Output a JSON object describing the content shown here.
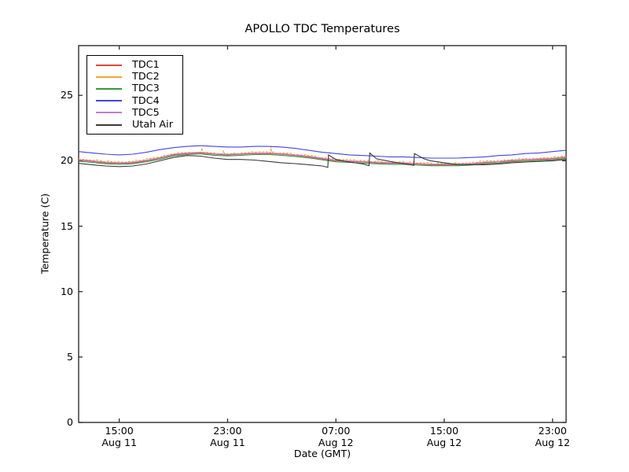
{
  "figure": {
    "background": "#ffffff",
    "axis_color": "#2e2e2e"
  },
  "chart_data": {
    "type": "line",
    "title": "APOLLO TDC Temperatures",
    "xlabel": "Date (GMT)",
    "ylabel": "Temperature (C)",
    "grid": false,
    "legend_position": "upper left",
    "ylim": [
      0,
      28.8
    ],
    "yticks": [
      0,
      5,
      10,
      15,
      20,
      25
    ],
    "xlim_hours": [
      0,
      36
    ],
    "x_unit": "hours from Aug 11 12:00 GMT",
    "xticks": [
      {
        "hour": 3,
        "time": "15:00",
        "date": "Aug 11"
      },
      {
        "hour": 11,
        "time": "23:00",
        "date": "Aug 11"
      },
      {
        "hour": 19,
        "time": "07:00",
        "date": "Aug 12"
      },
      {
        "hour": 27,
        "time": "15:00",
        "date": "Aug 12"
      },
      {
        "hour": 35,
        "time": "23:00",
        "date": "Aug 12"
      }
    ],
    "series": [
      {
        "name": "TDC1",
        "color": "#e2453c",
        "values": [
          20.05,
          19.95,
          19.85,
          19.8,
          19.85,
          20.0,
          20.2,
          20.45,
          20.55,
          20.6,
          20.5,
          20.45,
          20.5,
          20.55,
          20.55,
          20.5,
          20.4,
          20.3,
          20.15,
          20.0,
          19.95,
          19.9,
          19.85,
          19.8,
          19.8,
          19.75,
          19.7,
          19.7,
          19.7,
          19.75,
          19.85,
          19.9,
          20.0,
          20.05,
          20.1,
          20.15,
          20.25
        ]
      },
      {
        "name": "TDC2",
        "color": "#f5a33a",
        "noise": 0.055,
        "dash": "3,1.6",
        "spikes": [
          [
            9.1,
            0.3
          ],
          [
            10.7,
            0.22
          ],
          [
            14.2,
            0.45
          ]
        ],
        "values": [
          20.15,
          20.05,
          19.95,
          19.9,
          19.95,
          20.1,
          20.3,
          20.55,
          20.65,
          20.7,
          20.6,
          20.55,
          20.6,
          20.65,
          20.65,
          20.6,
          20.5,
          20.4,
          20.25,
          20.1,
          20.05,
          20.0,
          19.95,
          19.9,
          19.9,
          19.85,
          19.8,
          19.8,
          19.8,
          19.85,
          19.95,
          20.0,
          20.1,
          20.15,
          20.2,
          20.25,
          20.35
        ]
      },
      {
        "name": "TDC3",
        "color": "#37963f",
        "values": [
          19.97,
          19.87,
          19.77,
          19.72,
          19.77,
          19.92,
          20.12,
          20.37,
          20.47,
          20.52,
          20.42,
          20.37,
          20.42,
          20.47,
          20.47,
          20.42,
          20.32,
          20.22,
          20.07,
          19.92,
          19.87,
          19.82,
          19.77,
          19.72,
          19.72,
          19.67,
          19.62,
          19.62,
          19.62,
          19.67,
          19.77,
          19.82,
          19.92,
          19.97,
          20.02,
          20.07,
          20.17
        ]
      },
      {
        "name": "TDC4",
        "color": "#4343e8",
        "values": [
          20.7,
          20.6,
          20.5,
          20.45,
          20.5,
          20.65,
          20.85,
          21.0,
          21.1,
          21.15,
          21.1,
          21.05,
          21.05,
          21.1,
          21.1,
          21.05,
          20.95,
          20.8,
          20.65,
          20.55,
          20.45,
          20.4,
          20.35,
          20.3,
          20.3,
          20.25,
          20.2,
          20.2,
          20.2,
          20.25,
          20.3,
          20.4,
          20.45,
          20.55,
          20.6,
          20.7,
          20.8
        ]
      },
      {
        "name": "TDC5",
        "color": "#bd80cf",
        "values": [
          20.09,
          19.99,
          19.89,
          19.84,
          19.89,
          20.04,
          20.24,
          20.49,
          20.59,
          20.64,
          20.54,
          20.49,
          20.54,
          20.59,
          20.59,
          20.54,
          20.44,
          20.34,
          20.19,
          20.04,
          19.99,
          19.94,
          19.89,
          19.84,
          19.84,
          19.79,
          19.74,
          19.74,
          19.74,
          19.79,
          19.89,
          19.94,
          20.04,
          20.09,
          20.14,
          20.19,
          20.29
        ]
      },
      {
        "name": "Utah Air",
        "color": "#3a3a3a",
        "points": [
          [
            0,
            19.8
          ],
          [
            1,
            19.7
          ],
          [
            2,
            19.6
          ],
          [
            3,
            19.55
          ],
          [
            4,
            19.6
          ],
          [
            5,
            19.75
          ],
          [
            6,
            20.0
          ],
          [
            7,
            20.25
          ],
          [
            8,
            20.4
          ],
          [
            9,
            20.35
          ],
          [
            10,
            20.2
          ],
          [
            11,
            20.1
          ],
          [
            12,
            20.1
          ],
          [
            13,
            20.05
          ],
          [
            14,
            19.95
          ],
          [
            15,
            19.85
          ],
          [
            16,
            19.78
          ],
          [
            17,
            19.7
          ],
          [
            18,
            19.6
          ],
          [
            18.4,
            19.5
          ],
          [
            18.45,
            20.45
          ],
          [
            19,
            20.1
          ],
          [
            20,
            19.9
          ],
          [
            21,
            19.75
          ],
          [
            21.45,
            19.62
          ],
          [
            21.5,
            20.6
          ],
          [
            22,
            20.15
          ],
          [
            23,
            19.95
          ],
          [
            24,
            19.78
          ],
          [
            24.75,
            19.65
          ],
          [
            24.8,
            20.55
          ],
          [
            25.5,
            20.15
          ],
          [
            26,
            20.0
          ],
          [
            27,
            19.85
          ],
          [
            28,
            19.72
          ],
          [
            29,
            19.7
          ],
          [
            30,
            19.7
          ],
          [
            31,
            19.75
          ],
          [
            32,
            19.85
          ],
          [
            33,
            19.9
          ],
          [
            34,
            19.95
          ],
          [
            35,
            20.0
          ],
          [
            36,
            20.1
          ]
        ]
      }
    ]
  }
}
